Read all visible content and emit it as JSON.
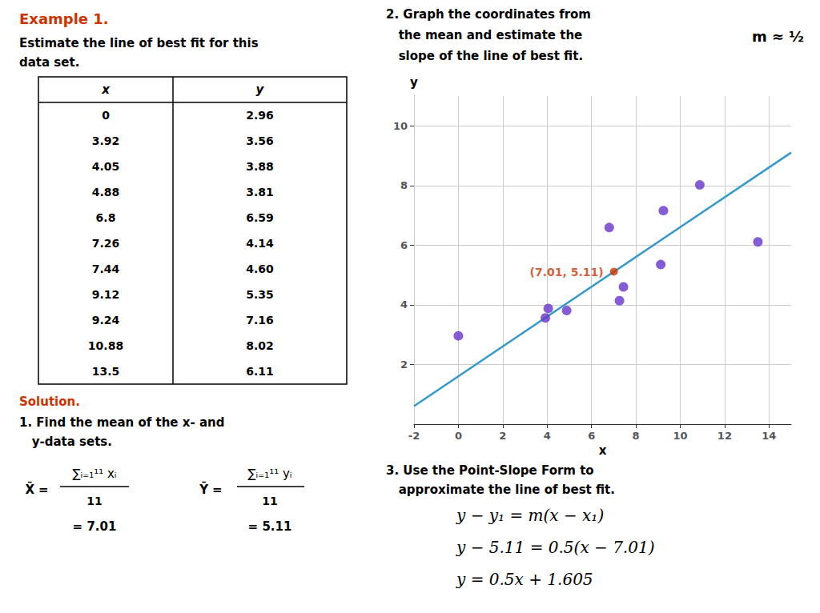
{
  "chart_data": {
    "type": "scatter",
    "example_label": "Example 1.",
    "problem_text": [
      "Estimate the line of best fit for this",
      "data set."
    ],
    "table_headers": [
      "x",
      "y"
    ],
    "solution_label": "Solution.",
    "step1_text": [
      "1. Find the mean of the x- and",
      "   y-data sets."
    ],
    "means": [
      {
        "symbol": "X̄",
        "numerator": "∑ᵢ₌₁¹¹ xᵢ",
        "denominator": "11",
        "result": "= 7.01"
      },
      {
        "symbol": "Ȳ",
        "numerator": "∑ᵢ₌₁¹¹ yᵢ",
        "denominator": "11",
        "result": "= 5.11"
      }
    ],
    "step2_text": [
      "2. Graph the coordinates from",
      "   the mean and estimate the",
      "   slope of the line of best fit."
    ],
    "slope_label": "m ≈ ½",
    "step3_text": [
      "3. Use the Point-Slope Form to",
      "   approximate the line of best fit."
    ],
    "equations": [
      "y − y₁ = m(x − x₁)",
      "y − 5.11 = 0.5(x − 7.01)",
      "y = 0.5x + 1.605"
    ],
    "x_label": "x",
    "y_label": "y",
    "xlim": [
      -2,
      15
    ],
    "ylim": [
      0,
      11
    ],
    "xticks": [
      -2,
      0,
      2,
      4,
      6,
      8,
      10,
      12,
      14
    ],
    "yticks": [
      2,
      4,
      6,
      8,
      10
    ],
    "grid": true,
    "series": [
      {
        "type": "scatter",
        "color": "#6633cc",
        "x": [
          0,
          3.92,
          4.05,
          4.88,
          6.8,
          7.26,
          7.44,
          9.12,
          9.24,
          10.88,
          13.5
        ],
        "values": [
          2.96,
          3.56,
          3.88,
          3.81,
          6.59,
          4.14,
          4.6,
          5.35,
          7.16,
          8.02,
          6.11
        ]
      },
      {
        "type": "line",
        "color": "#3399cc",
        "x": [
          -2,
          15
        ],
        "values": [
          0.605,
          9.105
        ]
      },
      {
        "type": "scatter",
        "color": "#cc3300",
        "x": [
          7.01
        ],
        "values": [
          5.11
        ],
        "value_labels": [
          "(7.01, 5.11)"
        ],
        "data_labels": true
      }
    ]
  }
}
